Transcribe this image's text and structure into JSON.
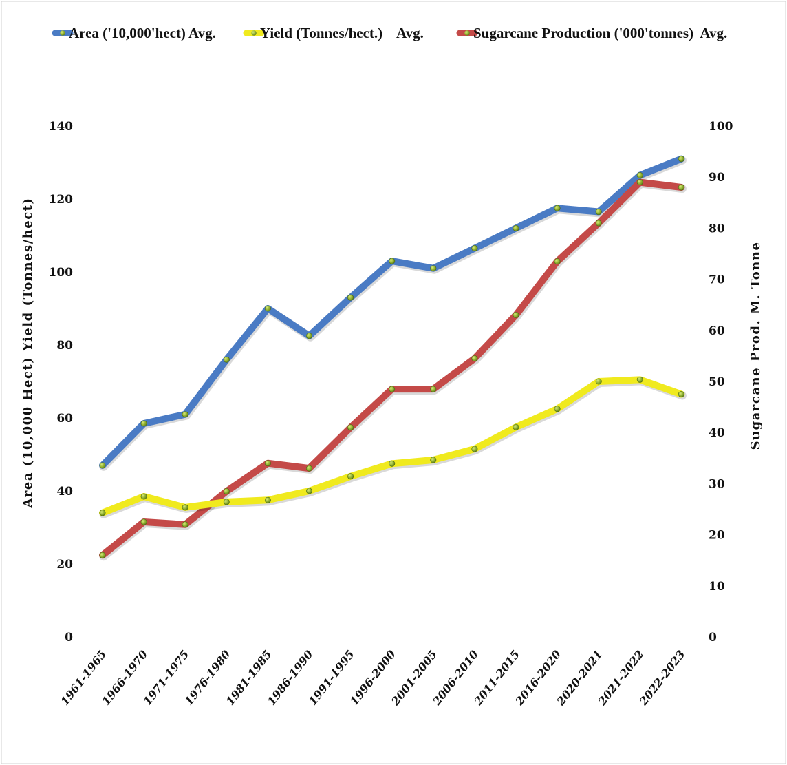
{
  "chart_data": {
    "type": "line",
    "title": "",
    "categories": [
      "1961-1965",
      "1966-1970",
      "1971-1975",
      "1976-1980",
      "1981-1985",
      "1986-1990",
      "1991-1995",
      "1996-2000",
      "2001-2005",
      "2006-2010",
      "2011-2015",
      "2016-2020",
      "2020-2021",
      "2021-2022",
      "2022-2023"
    ],
    "y_left": {
      "label": "Area (10,000 Hect) Yield  (Tonnes/hect)",
      "range": [
        0,
        140
      ],
      "ticks": [
        0,
        20,
        40,
        60,
        80,
        100,
        120,
        140
      ]
    },
    "y_right": {
      "label": "Sugarcane Prod. M. Tonne",
      "range": [
        0,
        100
      ],
      "ticks": [
        0,
        10,
        20,
        30,
        40,
        50,
        60,
        70,
        80,
        90,
        100
      ]
    },
    "series": [
      {
        "name": "Area ('10,000'hect) Avg.",
        "axis": "left",
        "color": "#4A7BC4",
        "values": [
          47,
          58.5,
          61,
          76,
          90,
          82.5,
          93,
          103,
          101,
          106.5,
          112,
          117.5,
          116.5,
          126.5,
          131
        ]
      },
      {
        "name": "Yield (Tonnes/hect.)    Avg.",
        "axis": "left",
        "color": "#F0EA1E",
        "values": [
          34,
          38.5,
          35.5,
          37,
          37.5,
          40,
          44,
          47.5,
          48.5,
          51.5,
          57.5,
          62.5,
          70,
          70.5,
          66.5
        ]
      },
      {
        "name": "Sugarcane Production ('000'tonnes)  Avg.",
        "axis": "right",
        "color": "#C44A48",
        "values": [
          16,
          22.5,
          22,
          28.5,
          34,
          33,
          41,
          48.5,
          48.5,
          54.5,
          63,
          73.5,
          81,
          89,
          88
        ]
      }
    ],
    "grid": false,
    "legend_position": "top"
  }
}
